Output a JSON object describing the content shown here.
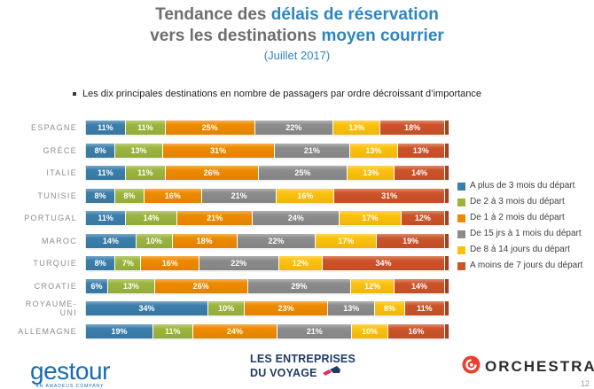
{
  "header": {
    "title_line1_gray": "Tendance des ",
    "title_line1_blue": "délais de réservation",
    "title_line2_gray": "vers les destinations ",
    "title_line2_blue": "moyen courrier",
    "subtitle": "(Juillet 2017)",
    "accent_color": "#2e86c1",
    "gray_color": "#6d6e71"
  },
  "bullet": {
    "text": "Les dix principales destinations en nombre de passagers par ordre décroissant d’importance"
  },
  "chart_data": {
    "type": "bar",
    "stacked": true,
    "orientation": "horizontal",
    "unit": "%",
    "xlim": [
      0,
      100
    ],
    "grid": false,
    "legend_position": "right",
    "value_labels": "inside-white",
    "title": "Tendance des délais de réservation vers les destinations moyen courrier (Juillet 2017)",
    "categories": [
      "ESPAGNE",
      "GRÈCE",
      "ITALIE",
      "TUNISIE",
      "PORTUGAL",
      "MAROC",
      "TURQUIE",
      "CROATIE",
      "ROYAUME-UNI",
      "ALLEMAGNE"
    ],
    "series": [
      {
        "name": "A plus de 3 mois du départ",
        "color": "#3b7fab",
        "values": [
          11,
          8,
          11,
          8,
          11,
          14,
          8,
          6,
          34,
          19
        ]
      },
      {
        "name": "De 2 à 3 mois du départ",
        "color": "#9cb53d",
        "values": [
          11,
          13,
          11,
          8,
          14,
          10,
          7,
          13,
          10,
          11
        ]
      },
      {
        "name": "De 1 à 2 mois du départ",
        "color": "#ef8a00",
        "values": [
          25,
          31,
          26,
          16,
          21,
          18,
          16,
          26,
          23,
          24
        ]
      },
      {
        "name": "De 15 jrs à 1 mois du départ",
        "color": "#8c8c8c",
        "values": [
          22,
          21,
          25,
          21,
          24,
          22,
          22,
          29,
          13,
          21
        ]
      },
      {
        "name": "De 8 à 14 jours du départ",
        "color": "#fdc10d",
        "values": [
          13,
          13,
          13,
          16,
          17,
          17,
          12,
          12,
          8,
          10
        ]
      },
      {
        "name": "A moins de 7 jours du départ",
        "color": "#cd5329",
        "values": [
          18,
          13,
          14,
          31,
          12,
          19,
          34,
          14,
          11,
          16
        ]
      }
    ],
    "end_cap_color": "#a8411f"
  },
  "footer": {
    "gestour_name": "gestour",
    "gestour_tagline": "AN AMADEUS COMPANY",
    "edv_line1": "LES ENTREPRISES",
    "edv_line2": "DU VOYAGE",
    "orchestra_name": "ORCHESTRA",
    "orchestra_red": "#e8402d",
    "edv_navy": "#1e3c64",
    "edv_pink": "#d6336c",
    "page_number": "12"
  }
}
